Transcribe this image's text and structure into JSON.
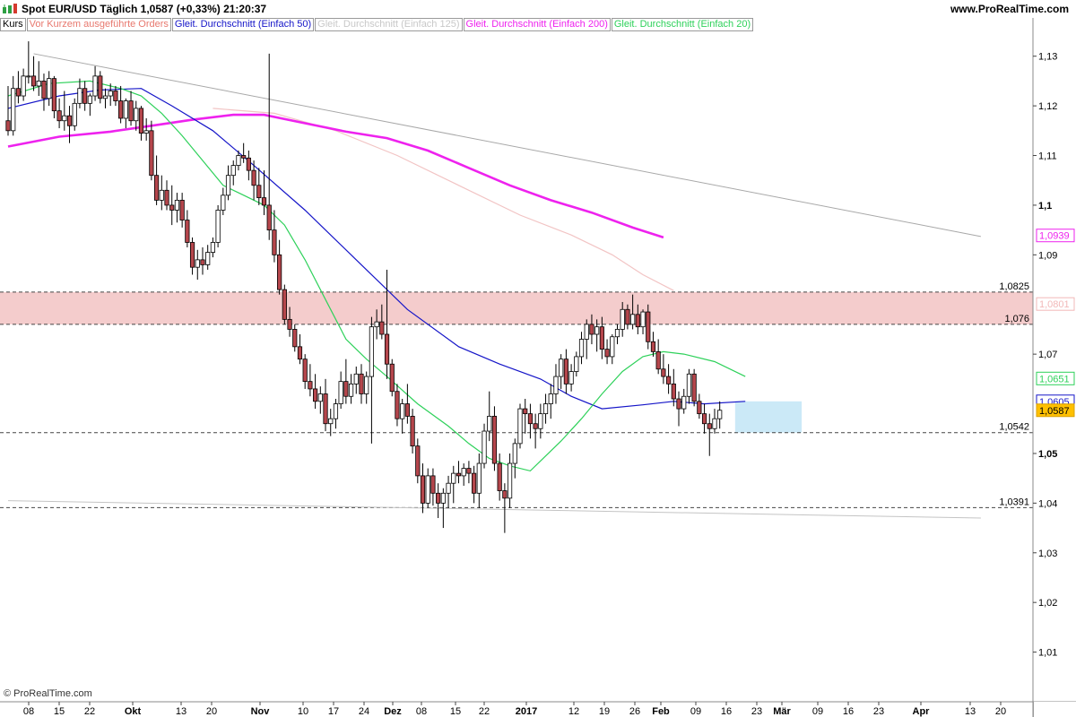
{
  "header": {
    "title": "Spot EUR/USD   Täglich   1,0587 (+0,33%)   21:20:37",
    "brand": "www.ProRealTime.com"
  },
  "legend": [
    {
      "label": "Kurs",
      "color": "#000000"
    },
    {
      "label": "Vor Kurzem ausgeführte Orders",
      "color": "#e8786e"
    },
    {
      "label": "Gleit. Durchschnitt (Einfach 50)",
      "color": "#1515c8"
    },
    {
      "label": "Gleit. Durchschnitt (Einfach 125)",
      "color": "#c8c8c8"
    },
    {
      "label": "Gleit. Durchschnitt (Einfach 200)",
      "color": "#ee22ee"
    },
    {
      "label": "Gleit. Durchschnitt (Einfach 20)",
      "color": "#2ed15a"
    }
  ],
  "copyright": "© ProRealTime.com",
  "chart_data": {
    "type": "candlestick",
    "instrument": "Spot EUR/USD",
    "ylim": [
      1.0,
      1.135
    ],
    "y_ticks": [
      "1,13",
      "1,12",
      "1,11",
      "1,1",
      "1,09",
      "1,07",
      "1,05",
      "1,04",
      "1,03",
      "1,02",
      "1,01"
    ],
    "y_tick_values": [
      1.13,
      1.12,
      1.11,
      1.1,
      1.09,
      1.07,
      1.05,
      1.04,
      1.03,
      1.02,
      1.01
    ],
    "x_ticks": [
      "08",
      "15",
      "22",
      "Okt",
      "13",
      "20",
      "Nov",
      "10",
      "17",
      "24",
      "Dez",
      "08",
      "15",
      "22",
      "2017",
      "12",
      "19",
      "26",
      "Feb",
      "09",
      "16",
      "23",
      "Mär",
      "09",
      "16",
      "23",
      "Apr",
      "13",
      "20"
    ],
    "x_tick_bold": [
      "Okt",
      "Nov",
      "Dez",
      "2017",
      "Feb",
      "Mär",
      "Apr"
    ],
    "candles": [
      [
        1.117,
        1.124,
        1.114,
        1.115
      ],
      [
        1.115,
        1.126,
        1.114,
        1.1235
      ],
      [
        1.1235,
        1.127,
        1.1205,
        1.122
      ],
      [
        1.122,
        1.1275,
        1.121,
        1.126
      ],
      [
        1.126,
        1.133,
        1.1245,
        1.126
      ],
      [
        1.126,
        1.13,
        1.123,
        1.124
      ],
      [
        1.124,
        1.129,
        1.122,
        1.125
      ],
      [
        1.125,
        1.1265,
        1.119,
        1.1215
      ],
      [
        1.1215,
        1.127,
        1.12,
        1.1255
      ],
      [
        1.1255,
        1.126,
        1.1175,
        1.119
      ],
      [
        1.119,
        1.1215,
        1.1155,
        1.117
      ],
      [
        1.117,
        1.123,
        1.115,
        1.118
      ],
      [
        1.118,
        1.12,
        1.1125,
        1.116
      ],
      [
        1.116,
        1.1215,
        1.115,
        1.1205
      ],
      [
        1.1205,
        1.1255,
        1.1195,
        1.1235
      ],
      [
        1.1235,
        1.125,
        1.119,
        1.1205
      ],
      [
        1.1205,
        1.1225,
        1.118,
        1.122
      ],
      [
        1.122,
        1.128,
        1.121,
        1.126
      ],
      [
        1.126,
        1.127,
        1.1205,
        1.1215
      ],
      [
        1.1215,
        1.1235,
        1.1195,
        1.122
      ],
      [
        1.122,
        1.1245,
        1.12,
        1.123
      ],
      [
        1.123,
        1.124,
        1.12,
        1.121
      ],
      [
        1.121,
        1.124,
        1.1165,
        1.1175
      ],
      [
        1.1175,
        1.1215,
        1.1155,
        1.121
      ],
      [
        1.121,
        1.123,
        1.116,
        1.117
      ],
      [
        1.117,
        1.121,
        1.115,
        1.1195
      ],
      [
        1.1195,
        1.12,
        1.113,
        1.1145
      ],
      [
        1.1145,
        1.1175,
        1.113,
        1.115
      ],
      [
        1.115,
        1.117,
        1.105,
        1.106
      ],
      [
        1.106,
        1.11,
        1.1,
        1.101
      ],
      [
        1.101,
        1.106,
        1.099,
        1.103
      ],
      [
        1.103,
        1.105,
        1.099,
        1.1
      ],
      [
        1.1,
        1.104,
        1.096,
        1.099
      ],
      [
        1.099,
        1.1025,
        1.0965,
        1.101
      ],
      [
        1.101,
        1.1025,
        1.0955,
        1.097
      ],
      [
        1.097,
        1.099,
        1.0915,
        1.0925
      ],
      [
        1.0925,
        1.0935,
        1.086,
        1.0875
      ],
      [
        1.0875,
        1.091,
        1.085,
        1.089
      ],
      [
        1.089,
        1.0915,
        1.086,
        1.088
      ],
      [
        1.088,
        1.092,
        1.087,
        1.0905
      ],
      [
        1.0905,
        1.0935,
        1.0895,
        1.0925
      ],
      [
        1.0925,
        1.1,
        1.0915,
        1.099
      ],
      [
        1.099,
        1.1035,
        1.098,
        1.102
      ],
      [
        1.102,
        1.108,
        1.101,
        1.106
      ],
      [
        1.106,
        1.109,
        1.104,
        1.108
      ],
      [
        1.108,
        1.111,
        1.107,
        1.11
      ],
      [
        1.11,
        1.1125,
        1.1085,
        1.1095
      ],
      [
        1.1095,
        1.111,
        1.105,
        1.107
      ],
      [
        1.107,
        1.109,
        1.101,
        1.104
      ],
      [
        1.104,
        1.1075,
        1.1,
        1.1015
      ],
      [
        1.1015,
        1.107,
        1.098,
        1.1
      ],
      [
        1.1,
        1.1305,
        1.093,
        1.095
      ],
      [
        1.095,
        1.099,
        1.0885,
        1.09
      ],
      [
        1.09,
        1.093,
        1.082,
        1.083
      ],
      [
        1.083,
        1.084,
        1.076,
        1.077
      ],
      [
        1.077,
        1.0795,
        1.0735,
        1.075
      ],
      [
        1.075,
        1.076,
        1.0705,
        1.0715
      ],
      [
        1.0715,
        1.074,
        1.068,
        1.069
      ],
      [
        1.069,
        1.07,
        1.063,
        1.0645
      ],
      [
        1.0645,
        1.068,
        1.0615,
        1.063
      ],
      [
        1.063,
        1.066,
        1.059,
        1.0605
      ],
      [
        1.0605,
        1.0635,
        1.058,
        1.062
      ],
      [
        1.062,
        1.065,
        1.0545,
        1.056
      ],
      [
        1.056,
        1.059,
        1.0535,
        1.057
      ],
      [
        1.057,
        1.061,
        1.055,
        1.06
      ],
      [
        1.06,
        1.0665,
        1.059,
        1.0645
      ],
      [
        1.0645,
        1.069,
        1.06,
        1.0615
      ],
      [
        1.0615,
        1.066,
        1.06,
        1.064
      ],
      [
        1.064,
        1.0675,
        1.062,
        1.066
      ],
      [
        1.066,
        1.068,
        1.06,
        1.062
      ],
      [
        1.062,
        1.0665,
        1.06,
        1.0655
      ],
      [
        1.0655,
        1.0775,
        1.052,
        1.0755
      ],
      [
        1.0755,
        1.079,
        1.073,
        1.0765
      ],
      [
        1.0765,
        1.08,
        1.073,
        1.074
      ],
      [
        1.074,
        1.087,
        1.065,
        1.068
      ],
      [
        1.068,
        1.069,
        1.0615,
        1.0625
      ],
      [
        1.0625,
        1.064,
        1.0555,
        1.057
      ],
      [
        1.057,
        1.061,
        1.054,
        1.06
      ],
      [
        1.06,
        1.064,
        1.056,
        1.0575
      ],
      [
        1.0575,
        1.059,
        1.05,
        1.0515
      ],
      [
        1.0515,
        1.053,
        1.044,
        1.0455
      ],
      [
        1.0455,
        1.048,
        1.038,
        1.04
      ],
      [
        1.04,
        1.047,
        1.039,
        1.0455
      ],
      [
        1.0455,
        1.047,
        1.0395,
        1.042
      ],
      [
        1.042,
        1.044,
        1.037,
        1.04
      ],
      [
        1.04,
        1.043,
        1.035,
        1.042
      ],
      [
        1.042,
        1.0455,
        1.039,
        1.044
      ],
      [
        1.044,
        1.0475,
        1.04,
        1.046
      ],
      [
        1.046,
        1.0485,
        1.044,
        1.0455
      ],
      [
        1.0455,
        1.048,
        1.0435,
        1.047
      ],
      [
        1.047,
        1.0485,
        1.044,
        1.046
      ],
      [
        1.046,
        1.0475,
        1.04,
        1.042
      ],
      [
        1.042,
        1.05,
        1.039,
        1.048
      ],
      [
        1.048,
        1.056,
        1.047,
        1.0545
      ],
      [
        1.0545,
        1.0625,
        1.0525,
        1.0575
      ],
      [
        1.0575,
        1.0595,
        1.0465,
        1.048
      ],
      [
        1.048,
        1.05,
        1.0405,
        1.0425
      ],
      [
        1.0425,
        1.044,
        1.034,
        1.041
      ],
      [
        1.041,
        1.05,
        1.039,
        1.048
      ],
      [
        1.048,
        1.053,
        1.045,
        1.052
      ],
      [
        1.052,
        1.06,
        1.051,
        1.059
      ],
      [
        1.059,
        1.061,
        1.054,
        1.058
      ],
      [
        1.058,
        1.06,
        1.053,
        1.056
      ],
      [
        1.056,
        1.058,
        1.051,
        1.055
      ],
      [
        1.055,
        1.06,
        1.053,
        1.058
      ],
      [
        1.058,
        1.062,
        1.056,
        1.06
      ],
      [
        1.06,
        1.064,
        1.057,
        1.062
      ],
      [
        1.062,
        1.068,
        1.06,
        1.0655
      ],
      [
        1.0655,
        1.07,
        1.063,
        1.069
      ],
      [
        1.069,
        1.071,
        1.062,
        1.064
      ],
      [
        1.064,
        1.068,
        1.0625,
        1.0665
      ],
      [
        1.0665,
        1.0705,
        1.0655,
        1.0695
      ],
      [
        1.0695,
        1.0745,
        1.068,
        1.073
      ],
      [
        1.073,
        1.077,
        1.069,
        1.076
      ],
      [
        1.076,
        1.078,
        1.072,
        1.074
      ],
      [
        1.074,
        1.077,
        1.0705,
        1.0755
      ],
      [
        1.0755,
        1.0775,
        1.069,
        1.071
      ],
      [
        1.071,
        1.073,
        1.068,
        1.0695
      ],
      [
        1.0695,
        1.074,
        1.068,
        1.0735
      ],
      [
        1.0735,
        1.076,
        1.072,
        1.075
      ],
      [
        1.075,
        1.0805,
        1.0735,
        1.079
      ],
      [
        1.079,
        1.08,
        1.075,
        1.076
      ],
      [
        1.076,
        1.082,
        1.075,
        1.078
      ],
      [
        1.078,
        1.08,
        1.074,
        1.0755
      ],
      [
        1.0755,
        1.079,
        1.074,
        1.0785
      ],
      [
        1.0785,
        1.08,
        1.071,
        1.0725
      ],
      [
        1.0725,
        1.0745,
        1.0695,
        1.0705
      ],
      [
        1.0705,
        1.073,
        1.066,
        1.067
      ],
      [
        1.067,
        1.07,
        1.064,
        1.0655
      ],
      [
        1.0655,
        1.068,
        1.062,
        1.064
      ],
      [
        1.064,
        1.067,
        1.0595,
        1.061
      ],
      [
        1.061,
        1.0625,
        1.0555,
        1.059
      ],
      [
        1.059,
        1.063,
        1.058,
        1.0615
      ],
      [
        1.0615,
        1.067,
        1.06,
        1.066
      ],
      [
        1.066,
        1.067,
        1.0595,
        1.0605
      ],
      [
        1.0605,
        1.062,
        1.057,
        1.058
      ],
      [
        1.058,
        1.06,
        1.054,
        1.056
      ],
      [
        1.056,
        1.058,
        1.0495,
        1.055
      ],
      [
        1.055,
        1.059,
        1.054,
        1.057
      ],
      [
        1.057,
        1.0605,
        1.055,
        1.0587
      ]
    ],
    "series": [
      {
        "name": "Gleit. Durchschnitt (Einfach 50)",
        "color": "#1515c8",
        "last": 1.0605
      },
      {
        "name": "Gleit. Durchschnitt (Einfach 125)",
        "color": "#f2c4c4",
        "last": 1.0801
      },
      {
        "name": "Gleit. Durchschnitt (Einfach 200)",
        "color": "#ee22ee",
        "last": 1.0939
      },
      {
        "name": "Gleit. Durchschnitt (Einfach 20)",
        "color": "#2ed15a",
        "last": 1.0651
      }
    ],
    "ma50": [
      [
        0,
        1.1195
      ],
      [
        10,
        1.122
      ],
      [
        18,
        1.1232
      ],
      [
        26,
        1.1235
      ],
      [
        32,
        1.12
      ],
      [
        40,
        1.115
      ],
      [
        48,
        1.108
      ],
      [
        58,
        1.099
      ],
      [
        68,
        1.089
      ],
      [
        78,
        1.079
      ],
      [
        88,
        1.0715
      ],
      [
        96,
        1.068
      ],
      [
        104,
        1.065
      ],
      [
        110,
        1.0615
      ],
      [
        116,
        1.059
      ],
      [
        124,
        1.0598
      ],
      [
        130,
        1.0605
      ],
      [
        136,
        1.06
      ],
      [
        144,
        1.0605
      ]
    ],
    "ma125": [
      [
        40,
        1.1195
      ],
      [
        52,
        1.1185
      ],
      [
        64,
        1.115
      ],
      [
        76,
        1.11
      ],
      [
        88,
        1.104
      ],
      [
        100,
        1.098
      ],
      [
        110,
        1.094
      ],
      [
        118,
        1.09
      ],
      [
        124,
        1.086
      ],
      [
        130,
        1.0828
      ]
    ],
    "ma200": [
      [
        0,
        1.1118
      ],
      [
        10,
        1.1138
      ],
      [
        20,
        1.1148
      ],
      [
        28,
        1.116
      ],
      [
        36,
        1.1172
      ],
      [
        44,
        1.1182
      ],
      [
        50,
        1.1182
      ],
      [
        58,
        1.1165
      ],
      [
        66,
        1.1148
      ],
      [
        74,
        1.1135
      ],
      [
        82,
        1.111
      ],
      [
        90,
        1.1075
      ],
      [
        98,
        1.104
      ],
      [
        106,
        1.101
      ],
      [
        114,
        1.0985
      ],
      [
        122,
        1.0955
      ],
      [
        128,
        1.0935
      ]
    ],
    "ma20": [
      [
        0,
        1.122
      ],
      [
        8,
        1.1245
      ],
      [
        16,
        1.125
      ],
      [
        22,
        1.1235
      ],
      [
        26,
        1.122
      ],
      [
        30,
        1.1185
      ],
      [
        34,
        1.114
      ],
      [
        38,
        1.109
      ],
      [
        42,
        1.104
      ],
      [
        46,
        1.102
      ],
      [
        50,
        1.1
      ],
      [
        54,
        1.096
      ],
      [
        58,
        1.089
      ],
      [
        62,
        1.081
      ],
      [
        66,
        1.073
      ],
      [
        70,
        1.069
      ],
      [
        74,
        1.0655
      ],
      [
        80,
        1.06
      ],
      [
        86,
        1.0555
      ],
      [
        90,
        1.052
      ],
      [
        94,
        1.049
      ],
      [
        98,
        1.0475
      ],
      [
        102,
        1.0465
      ],
      [
        104,
        1.0485
      ],
      [
        108,
        1.0525
      ],
      [
        112,
        1.057
      ],
      [
        116,
        1.062
      ],
      [
        120,
        1.0665
      ],
      [
        124,
        1.0695
      ],
      [
        128,
        1.0705
      ],
      [
        132,
        1.07
      ],
      [
        138,
        1.0685
      ],
      [
        144,
        1.0655
      ]
    ],
    "horizontal_levels": [
      {
        "value": 1.0825,
        "label": "1,0825"
      },
      {
        "value": 1.076,
        "label": "1,076"
      },
      {
        "value": 1.0542,
        "label": "1,0542"
      },
      {
        "value": 1.0391,
        "label": "1,0391"
      }
    ],
    "zone": {
      "from": 1.076,
      "to": 1.0825,
      "color": "#f4cccc"
    },
    "order_box": {
      "from": 1.0542,
      "to": 1.0605,
      "color": "#cbe9f7"
    },
    "trendlines": [
      {
        "from": [
          5,
          1.1305
        ],
        "to": [
          190,
          1.0937
        ]
      },
      {
        "from": [
          0,
          1.0405
        ],
        "to": [
          190,
          1.037
        ]
      }
    ],
    "price_labels": [
      {
        "value": 1.0939,
        "text": "1,0939",
        "fg": "#ee22ee",
        "bg": "#ffffff",
        "border": "#ee22ee"
      },
      {
        "value": 1.0801,
        "text": "1,0801",
        "fg": "#f2b8b8",
        "bg": "#ffffff",
        "border": "#f2b8b8"
      },
      {
        "value": 1.0651,
        "text": "1,0651",
        "fg": "#2ed15a",
        "bg": "#ffffff",
        "border": "#2ed15a"
      },
      {
        "value": 1.0605,
        "text": "1,0605",
        "fg": "#1515c8",
        "bg": "#ffffff",
        "border": "#1515c8"
      },
      {
        "value": 1.0587,
        "text": "1,0587",
        "fg": "#000000",
        "bg": "#ffc000",
        "border": "#d9a000"
      }
    ]
  }
}
